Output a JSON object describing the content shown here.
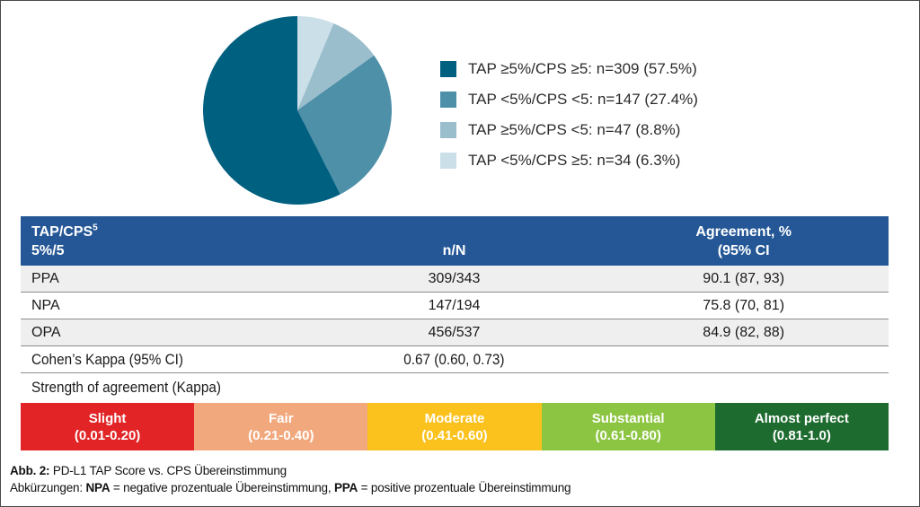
{
  "chart_data": [
    {
      "type": "pie",
      "title": "",
      "legend_position": "right",
      "categories": [
        "TAP ≥5%/CPS ≥5",
        "TAP <5%/CPS <5",
        "TAP ≥5%/CPS <5",
        "TAP <5%/CPS ≥5"
      ],
      "values": [
        309,
        147,
        47,
        34
      ],
      "percents": [
        57.5,
        27.4,
        8.8,
        6.3
      ],
      "colors": [
        "#006080",
        "#4f90a9",
        "#9bbecd",
        "#cbdfe9"
      ],
      "legend_labels": [
        "TAP ≥5%/CPS ≥5: n=309 (57.5%)",
        "TAP <5%/CPS <5: n=147 (27.4%)",
        "TAP ≥5%/CPS <5: n=47 (8.8%)",
        "TAP <5%/CPS ≥5: n=34 (6.3%)"
      ],
      "note": "slices drawn clockwise from 12 o'clock in order lightest(6.3%), light(8.8%), medium(27.4%), dark(57.5%)"
    },
    {
      "type": "table",
      "header": {
        "col1_line1": "TAP/CPS",
        "col1_sup": "5",
        "col1_line2": "5%/5",
        "col2": "n/N",
        "col3_line1": "Agreement, %",
        "col3_line2": "(95% CI"
      },
      "rows": [
        {
          "label": "PPA",
          "nN": "309/343",
          "agreement": "90.1 (87, 93)"
        },
        {
          "label": "NPA",
          "nN": "147/194",
          "agreement": "75.8 (70, 81)"
        },
        {
          "label": "OPA",
          "nN": "456/537",
          "agreement": "84.9 (82, 88)"
        }
      ],
      "kappa": {
        "label": "Cohen’s Kappa (95% CI)",
        "value": "0.67 (0.60, 0.73)"
      },
      "strength_label": "Strength of agreement (Kappa)"
    }
  ],
  "scale": {
    "segments": [
      {
        "label": "Slight",
        "range": "(0.01-0.20)",
        "color": "#e22427"
      },
      {
        "label": "Fair",
        "range": "(0.21-0.40)",
        "color": "#f2a87d"
      },
      {
        "label": "Moderate",
        "range": "(0.41-0.60)",
        "color": "#fbc21e"
      },
      {
        "label": "Substantial",
        "range": "(0.61-0.80)",
        "color": "#8cc541"
      },
      {
        "label": "Almost perfect",
        "range": "(0.81-1.0)",
        "color": "#1d6b2f"
      }
    ]
  },
  "caption": {
    "line1_bold": "Abb. 2:",
    "line1_rest": " PD-L1 TAP Score vs. CPS Übereinstimmung",
    "line2_prefix": "Abkürzungen: ",
    "line2_bold1": "NPA",
    "line2_mid": " = negative prozentuale Übereinstimmung, ",
    "line2_bold2": "PPA",
    "line2_rest": " = positive prozentuale Übereinstimmung"
  },
  "colors": {
    "header_blue": "#255796",
    "row_alt_gray": "#efefef",
    "divider_gray": "#8c8c8c",
    "pie_dark_teal": "#006080",
    "pie_medium_teal": "#4f90a9",
    "pie_light_blue": "#9bbecd",
    "pie_lightest_blue": "#cbdfe9"
  }
}
